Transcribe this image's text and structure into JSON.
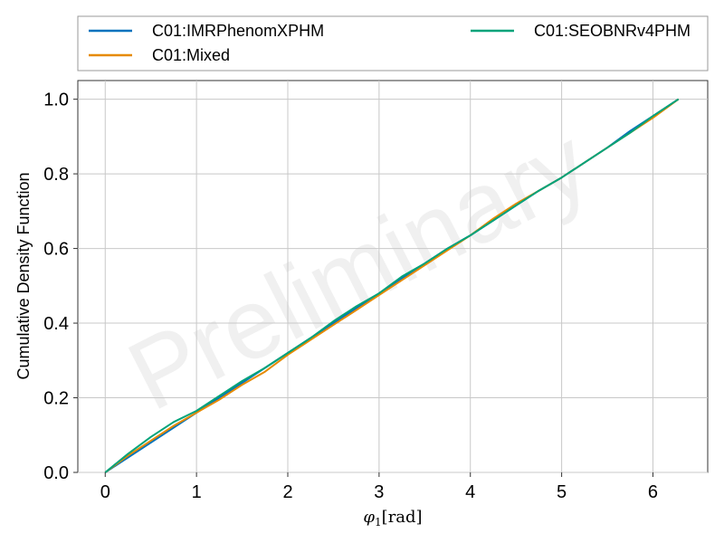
{
  "chart_data": {
    "type": "line",
    "xlabel_symbol": "φ",
    "xlabel_subscript": "1",
    "xlabel_unit": "[rad]",
    "ylabel": "Cumulative Density Function",
    "watermark": "Preliminary",
    "xlim": [
      -0.3,
      6.6
    ],
    "ylim": [
      0,
      1.05
    ],
    "xticks": [
      0,
      1,
      2,
      3,
      4,
      5,
      6
    ],
    "yticks": [
      0.0,
      0.2,
      0.4,
      0.6,
      0.8,
      1.0
    ],
    "ytick_labels": [
      "0.0",
      "0.2",
      "0.4",
      "0.6",
      "0.8",
      "1.0"
    ],
    "grid": true,
    "legend_position": "top (outside plot, 2 columns)",
    "series": [
      {
        "name": "C01:IMRPhenomXPHM",
        "color": "#0072bd",
        "x": [
          0,
          0.25,
          0.5,
          0.75,
          1.0,
          1.25,
          1.5,
          1.75,
          2.0,
          2.25,
          2.5,
          2.75,
          3.0,
          3.25,
          3.5,
          3.75,
          4.0,
          4.25,
          4.5,
          4.75,
          5.0,
          5.25,
          5.5,
          5.75,
          6.0,
          6.28
        ],
        "y": [
          0,
          0.04,
          0.08,
          0.12,
          0.16,
          0.2,
          0.24,
          0.28,
          0.32,
          0.36,
          0.4,
          0.44,
          0.48,
          0.52,
          0.56,
          0.6,
          0.635,
          0.675,
          0.715,
          0.755,
          0.79,
          0.83,
          0.87,
          0.915,
          0.955,
          1.0
        ]
      },
      {
        "name": "C01:Mixed",
        "color": "#e68a00",
        "x": [
          0,
          0.25,
          0.5,
          0.75,
          1.0,
          1.25,
          1.5,
          1.75,
          2.0,
          2.25,
          2.5,
          2.75,
          3.0,
          3.25,
          3.5,
          3.75,
          4.0,
          4.25,
          4.5,
          4.75,
          5.0,
          5.25,
          5.5,
          5.75,
          6.0,
          6.28
        ],
        "y": [
          0,
          0.045,
          0.085,
          0.125,
          0.16,
          0.195,
          0.235,
          0.27,
          0.315,
          0.355,
          0.395,
          0.435,
          0.475,
          0.515,
          0.555,
          0.595,
          0.635,
          0.68,
          0.72,
          0.755,
          0.79,
          0.83,
          0.87,
          0.91,
          0.95,
          1.0
        ]
      },
      {
        "name": "C01:SEOBNRv4PHM",
        "color": "#00a37a",
        "x": [
          0,
          0.25,
          0.5,
          0.75,
          1.0,
          1.25,
          1.5,
          1.75,
          2.0,
          2.25,
          2.5,
          2.75,
          3.0,
          3.25,
          3.5,
          3.75,
          4.0,
          4.25,
          4.5,
          4.75,
          5.0,
          5.25,
          5.5,
          5.75,
          6.0,
          6.28
        ],
        "y": [
          0,
          0.05,
          0.095,
          0.135,
          0.165,
          0.205,
          0.245,
          0.28,
          0.32,
          0.36,
          0.405,
          0.445,
          0.48,
          0.525,
          0.56,
          0.6,
          0.635,
          0.675,
          0.715,
          0.755,
          0.79,
          0.83,
          0.87,
          0.91,
          0.955,
          1.0
        ]
      }
    ]
  }
}
